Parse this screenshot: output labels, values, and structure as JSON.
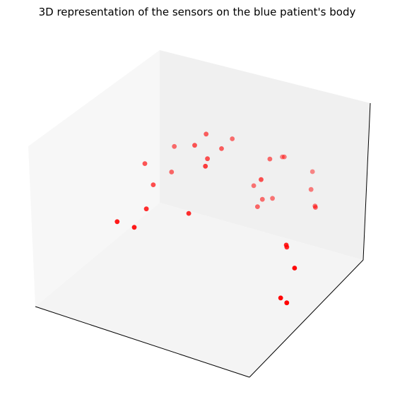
{
  "chart_data": {
    "type": "scatter",
    "projection": "3d",
    "title": "3D representation of the sensors on the blue patient's body",
    "xlabel": "",
    "ylabel": "",
    "zlabel": "",
    "ticks_visible": false,
    "grid": false,
    "colors": {
      "point": "#ff0000",
      "pane_left": "#f7f7f7",
      "pane_back": "#f0f0f0",
      "pane_floor": "#f4f4f4",
      "axis_line": "#000000"
    },
    "series": [
      {
        "color": "#ff0000",
        "points": [
          {
            "x": 0.32,
            "y": 0.86,
            "z": 0.66
          },
          {
            "x": 0.39,
            "y": 0.86,
            "z": 0.6
          },
          {
            "x": 0.3,
            "y": 0.8,
            "z": 0.62
          },
          {
            "x": 0.37,
            "y": 0.78,
            "z": 0.58
          },
          {
            "x": 0.4,
            "y": 0.93,
            "z": 0.62
          },
          {
            "x": 0.06,
            "y": 0.8,
            "z": 0.4
          },
          {
            "x": 0.13,
            "y": 0.92,
            "z": 0.46
          },
          {
            "x": 0.13,
            "y": 0.89,
            "z": 0.32
          },
          {
            "x": 0.12,
            "y": 0.76,
            "z": 0.32
          },
          {
            "x": 0.1,
            "y": 0.5,
            "z": 0.25
          },
          {
            "x": 0.42,
            "y": 0.68,
            "z": 0.62
          },
          {
            "x": 0.58,
            "y": 0.92,
            "z": 0.58
          },
          {
            "x": 0.56,
            "y": 1.05,
            "z": 0.5
          },
          {
            "x": 0.62,
            "y": 0.78,
            "z": 0.56
          },
          {
            "x": 0.48,
            "y": 0.95,
            "z": 0.35
          },
          {
            "x": 0.38,
            "y": 0.6,
            "z": 0.36
          },
          {
            "x": 0.53,
            "y": 0.93,
            "z": 0.3
          },
          {
            "x": 0.56,
            "y": 0.96,
            "z": 0.3
          },
          {
            "x": 0.53,
            "y": 0.89,
            "z": 0.28
          },
          {
            "x": 0.6,
            "y": 1.0,
            "z": 0.55
          },
          {
            "x": 0.7,
            "y": 1.05,
            "z": 0.47
          },
          {
            "x": 0.72,
            "y": 1.0,
            "z": 0.4
          },
          {
            "x": 0.78,
            "y": 0.93,
            "z": 0.36
          },
          {
            "x": 0.76,
            "y": 0.96,
            "z": 0.34
          },
          {
            "x": 0.18,
            "y": 0.5,
            "z": 0.25
          },
          {
            "x": 0.18,
            "y": 0.6,
            "z": 0.3
          },
          {
            "x": 0.86,
            "y": 0.56,
            "z": 0.4
          },
          {
            "x": 0.85,
            "y": 0.58,
            "z": 0.37
          },
          {
            "x": 0.98,
            "y": 0.42,
            "z": 0.4
          },
          {
            "x": 0.92,
            "y": 0.4,
            "z": 0.2
          },
          {
            "x": 0.96,
            "y": 0.38,
            "z": 0.2
          }
        ]
      }
    ]
  }
}
